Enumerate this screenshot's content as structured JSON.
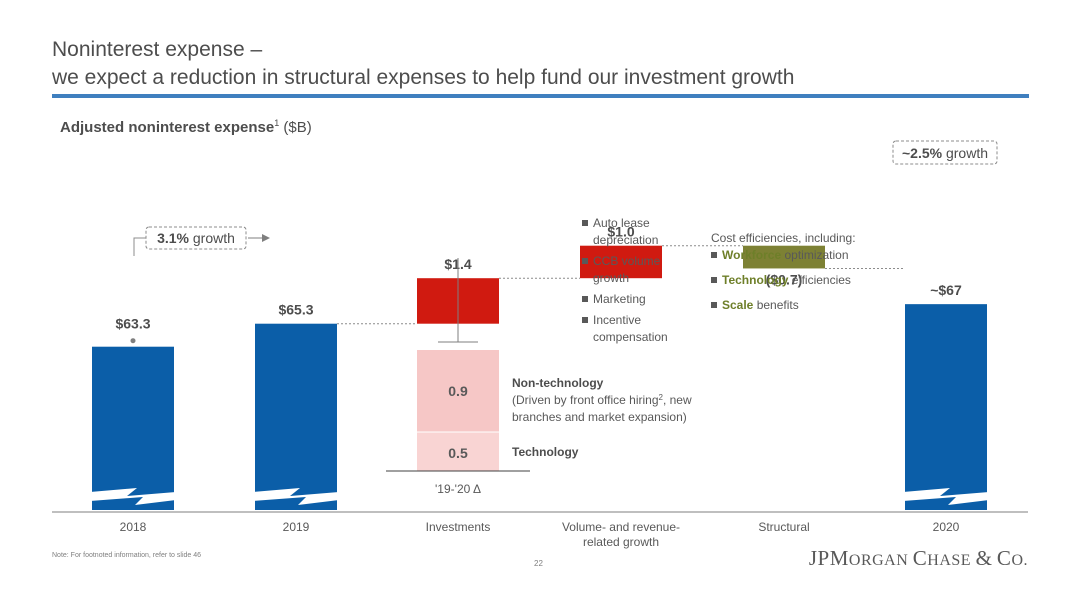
{
  "title": {
    "line1": "Noninterest expense –",
    "line2": "we expect a reduction in structural expenses to help fund our investment growth"
  },
  "subtitle": {
    "bold": "Adjusted noninterest expense",
    "sup": "1",
    "unit": "($B)"
  },
  "chart_data": {
    "type": "bar",
    "categories": [
      "2018",
      "2019",
      "Investments",
      "Volume- and revenue-\nrelated growth",
      "Structural",
      "2020"
    ],
    "values": [
      63.3,
      65.3,
      1.4,
      1.0,
      -0.7,
      67
    ],
    "value_labels": [
      "$63.3",
      "$65.3",
      "$1.4",
      "$1.0",
      "($0.7)",
      "~$67"
    ],
    "investments_breakdown": [
      {
        "name": "Non-technology",
        "value": 0.9,
        "label": "0.9"
      },
      {
        "name": "Technology",
        "value": 0.5,
        "label": "0.5"
      }
    ],
    "investments_axis_label": "'19-'20 Δ",
    "growth_callouts": [
      {
        "bold": "3.1%",
        "text": " growth"
      },
      {
        "bold": "~2.5%",
        "text": " growth"
      }
    ],
    "colors": {
      "total": "#0b5ea8",
      "increase": "#d01a10",
      "decrease": "#7d8134",
      "breakdown": "#f6c7c6",
      "green_text": "#6e7f29"
    }
  },
  "annotations": {
    "volume_items": [
      "Auto lease depreciation",
      "CCB volume growth",
      "Marketing",
      "Incentive compensation"
    ],
    "structural_intro": "Cost efficiencies, including:",
    "structural_items": [
      {
        "bold": "Workforce",
        "text": " optimization"
      },
      {
        "bold": "Technology",
        "text": " efficiencies"
      },
      {
        "bold": "Scale",
        "text": " benefits"
      }
    ],
    "nontech_title": "Non-technology",
    "nontech_desc_a": "(Driven by front office hiring",
    "nontech_desc_sup": "2",
    "nontech_desc_b": ", new",
    "nontech_desc_line2": "branches and market expansion)",
    "tech_title": "Technology"
  },
  "footer": {
    "note": "Note: For footnoted information, refer to slide 46",
    "page": "22",
    "logo": "JPMorgan Chase & Co."
  }
}
